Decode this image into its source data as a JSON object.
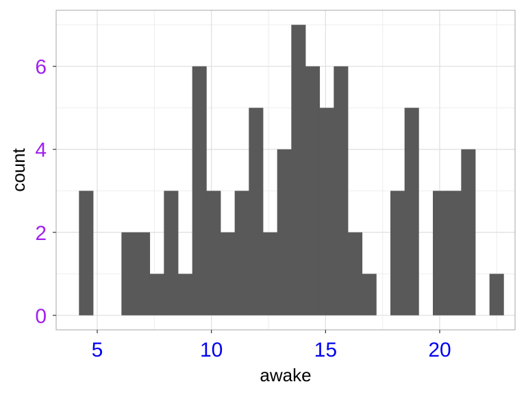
{
  "chart_data": {
    "type": "bar",
    "xlabel": "awake",
    "ylabel": "count",
    "xlim": [
      3.2,
      23.3
    ],
    "ylim": [
      -0.35,
      7.35
    ],
    "bin_width": 0.62,
    "bins": [
      {
        "x": 4.2,
        "count": 3
      },
      {
        "x": 4.82,
        "count": 0
      },
      {
        "x": 5.44,
        "count": 0
      },
      {
        "x": 6.06,
        "count": 2
      },
      {
        "x": 6.68,
        "count": 2
      },
      {
        "x": 7.3,
        "count": 1
      },
      {
        "x": 7.92,
        "count": 3
      },
      {
        "x": 8.54,
        "count": 1
      },
      {
        "x": 9.16,
        "count": 6
      },
      {
        "x": 9.78,
        "count": 3
      },
      {
        "x": 10.4,
        "count": 2
      },
      {
        "x": 11.02,
        "count": 3
      },
      {
        "x": 11.64,
        "count": 5
      },
      {
        "x": 12.26,
        "count": 2
      },
      {
        "x": 12.88,
        "count": 4
      },
      {
        "x": 13.5,
        "count": 7
      },
      {
        "x": 14.12,
        "count": 6
      },
      {
        "x": 14.74,
        "count": 5
      },
      {
        "x": 15.36,
        "count": 6
      },
      {
        "x": 15.98,
        "count": 2
      },
      {
        "x": 16.6,
        "count": 1
      },
      {
        "x": 17.22,
        "count": 0
      },
      {
        "x": 17.84,
        "count": 3
      },
      {
        "x": 18.46,
        "count": 5
      },
      {
        "x": 19.08,
        "count": 0
      },
      {
        "x": 19.7,
        "count": 3
      },
      {
        "x": 20.32,
        "count": 3
      },
      {
        "x": 20.94,
        "count": 4
      },
      {
        "x": 21.56,
        "count": 0
      },
      {
        "x": 22.18,
        "count": 1
      }
    ],
    "x_ticks": [
      5,
      10,
      15,
      20
    ],
    "x_tick_labels": [
      "5",
      "10",
      "15",
      "20"
    ],
    "y_ticks": [
      0,
      2,
      4,
      6
    ],
    "y_tick_labels": [
      "0",
      "2",
      "4",
      "6"
    ],
    "colors": {
      "bar": "#595959",
      "x_tick_text": "#0000ee",
      "y_tick_text": "#a020f0",
      "grid_major": "#dedede",
      "grid_minor": "#eeeeee",
      "panel_border": "#b3b3b3"
    },
    "grid": true,
    "legend": "none"
  }
}
